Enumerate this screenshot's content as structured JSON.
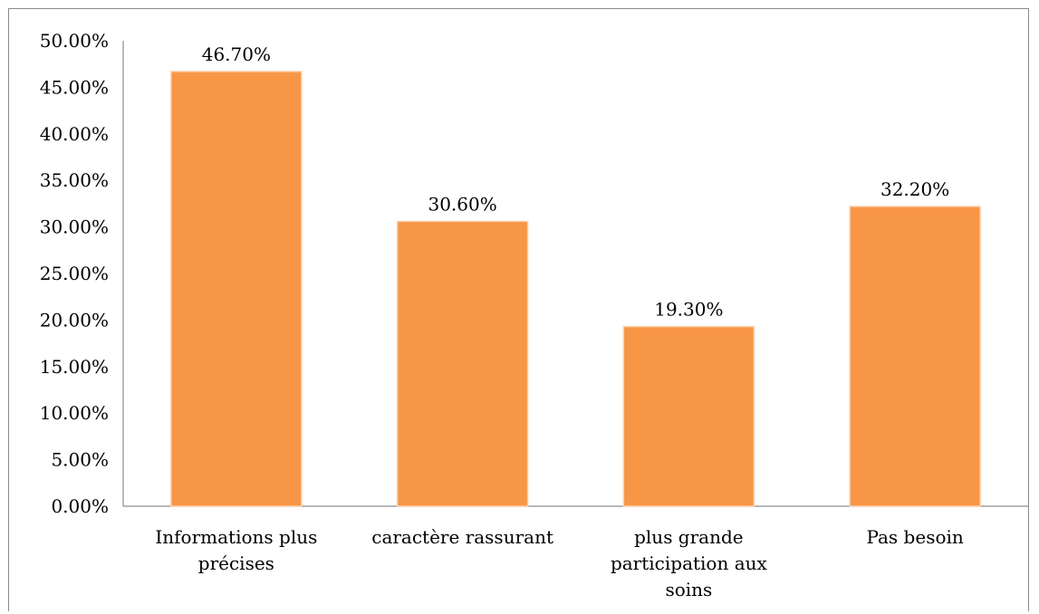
{
  "chart_data": {
    "type": "bar",
    "categories": [
      [
        "Informations plus",
        "précises"
      ],
      [
        "caractère rassurant"
      ],
      [
        "plus grande",
        "participation aux",
        "soins"
      ],
      [
        "Pas besoin"
      ]
    ],
    "values": [
      46.7,
      30.6,
      19.3,
      32.2
    ],
    "data_labels": [
      "46.70%",
      "30.60%",
      "19.30%",
      "32.20%"
    ],
    "y_ticks": [
      "0.00%",
      "5.00%",
      "10.00%",
      "15.00%",
      "20.00%",
      "25.00%",
      "30.00%",
      "35.00%",
      "40.00%",
      "45.00%",
      "50.00%"
    ],
    "ylim": [
      0,
      50
    ],
    "title": "",
    "xlabel": "",
    "ylabel": "",
    "grid": false,
    "legend": "none",
    "bar_color": "#f79646",
    "axis_color": "#8c8c8c"
  }
}
